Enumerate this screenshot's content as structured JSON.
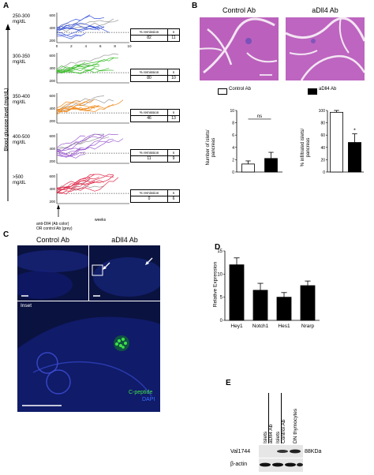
{
  "panel_labels": {
    "A": "A",
    "B": "B",
    "C": "C",
    "D": "D",
    "E": "E"
  },
  "panelA": {
    "ylabel": "Blood glucose level (mg/dL)",
    "xlabel": "weeks",
    "footnote_line1": "anti-Dll4 (Ab color)",
    "footnote_line2": "OR control Ab (grey)",
    "table_header": [
      "% remission",
      "n"
    ],
    "groups": [
      {
        "range": "250-300",
        "unit": "mg/dL",
        "remission": "82",
        "n": "11",
        "color": "#3a55d6"
      },
      {
        "range": "300-350",
        "unit": "mg/dL",
        "remission": "80",
        "n": "10",
        "color": "#3fbf2e"
      },
      {
        "range": "350-400",
        "unit": "mg/dL",
        "remission": "46",
        "n": "13",
        "color": "#f08a1c"
      },
      {
        "range": "400-500",
        "unit": "mg/dL",
        "remission": "11",
        "n": "9",
        "color": "#9b5bd0"
      },
      {
        "range": ">500",
        "unit": "mg/dL",
        "remission": "0",
        "n": "6",
        "color": "#e02a4a"
      }
    ],
    "y_ticks": [
      "600",
      "400",
      "200"
    ],
    "x_ticks": [
      "0",
      "2",
      "4",
      "6",
      "8",
      "10"
    ]
  },
  "panelB": {
    "label_control": "Control Ab",
    "label_adll4": "aDll4 Ab",
    "legend": [
      "Control Ab",
      "aDll4 Ab"
    ],
    "left_chart_ylabel_1": "Number of islets/",
    "left_chart_ylabel_2": "pancreas",
    "right_chart_ylabel_1": "% infiltrated islets/",
    "right_chart_ylabel_2": "pancreas",
    "ns_label": "ns",
    "star_label": "*"
  },
  "panelC": {
    "label_control": "Control Ab",
    "label_adll4": "aDll4 Ab",
    "inset_label": "Inset",
    "legend_cpeptide": "C-peptide",
    "legend_dapi": "DAPI"
  },
  "panelE": {
    "col_labels": [
      "Islets",
      "aDll4 Ab",
      "Islets",
      "Control Ab",
      "DN thymocytes"
    ],
    "row_labels": [
      "Val1744",
      "β-actin"
    ],
    "size_label": "88KDa"
  },
  "chart_data": [
    {
      "type": "bar",
      "title": "",
      "xlabel": "",
      "ylabel": "Number of islets/ pancreas",
      "categories": [
        "Control Ab",
        "aDll4 Ab"
      ],
      "values": [
        1.3,
        2.2
      ],
      "errors": [
        0.5,
        1.0
      ],
      "colors": [
        "#ffffff",
        "#000000"
      ],
      "ylim": [
        0,
        10
      ],
      "yticks": [
        0,
        2,
        4,
        6,
        8,
        10
      ],
      "annotation": "ns"
    },
    {
      "type": "bar",
      "title": "",
      "xlabel": "",
      "ylabel": "% infiltrated islets/ pancreas",
      "categories": [
        "Control Ab",
        "aDll4 Ab"
      ],
      "values": [
        97,
        48
      ],
      "errors": [
        3,
        14
      ],
      "colors": [
        "#ffffff",
        "#000000"
      ],
      "ylim": [
        0,
        100
      ],
      "yticks": [
        0,
        20,
        40,
        60,
        80,
        100
      ],
      "annotation": "*"
    },
    {
      "type": "bar",
      "title": "",
      "xlabel": "",
      "ylabel": "Relative Expression",
      "categories": [
        "Hey1",
        "Notch1",
        "Hes1",
        "Nrarp"
      ],
      "values": [
        12,
        6.5,
        5,
        7.5
      ],
      "errors": [
        1.5,
        1.5,
        1.0,
        1.0
      ],
      "colors": [
        "#000000",
        "#000000",
        "#000000",
        "#000000"
      ],
      "ylim": [
        0,
        15
      ],
      "yticks": [
        0,
        5,
        10,
        15
      ]
    }
  ]
}
